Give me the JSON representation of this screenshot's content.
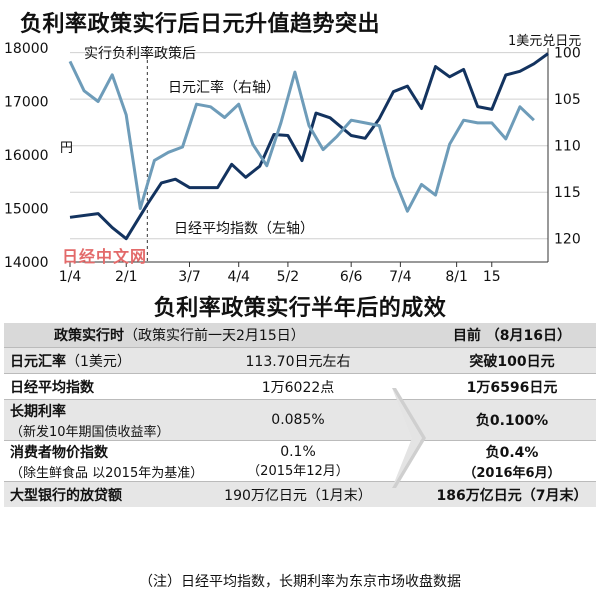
{
  "chart": {
    "title": "负利率政策实行后日元升值趋势突出",
    "right_unit": "1美元兑日元",
    "left_unit": "円",
    "annotation_policy": "实行负利率政策后",
    "label_yen": "日元汇率（右轴）",
    "label_nikkei": "日经平均指数（左轴）",
    "watermark": "日经中文网",
    "colors": {
      "yen": "#13335f",
      "nikkei": "#6e9cb9",
      "grid": "#d0d0d0"
    }
  },
  "chart_data": {
    "type": "line",
    "title": "负利率政策实行后日元升值趋势突出",
    "x_tick_labels": [
      "1/4",
      "2/1",
      "3/7",
      "4/4",
      "5/2",
      "6/6",
      "7/4",
      "8/1",
      "15"
    ],
    "x_tick_index": [
      0,
      8,
      17,
      24,
      31,
      40,
      47,
      55,
      60
    ],
    "policy_start_index": 11,
    "y_left": {
      "label": "",
      "range": [
        14000,
        18000
      ],
      "ticks": [
        14000,
        15000,
        16000,
        17000,
        18000
      ]
    },
    "y_right": {
      "label": "",
      "range": [
        122.5,
        99.5
      ],
      "ticks": [
        100,
        105,
        110,
        115,
        120
      ],
      "inverted": true
    },
    "series": [
      {
        "name": "日元汇率（右轴）",
        "axis": "right",
        "points": [
          [
            0,
            117.7
          ],
          [
            4,
            117.3
          ],
          [
            6,
            118.8
          ],
          [
            8,
            120.0
          ],
          [
            11,
            116.3
          ],
          [
            13,
            114.0
          ],
          [
            15,
            113.6
          ],
          [
            17,
            114.5
          ],
          [
            19,
            114.5
          ],
          [
            21,
            114.5
          ],
          [
            23,
            112.0
          ],
          [
            25,
            113.4
          ],
          [
            27,
            112.2
          ],
          [
            29,
            108.8
          ],
          [
            31,
            108.9
          ],
          [
            33,
            111.6
          ],
          [
            35,
            106.5
          ],
          [
            37,
            107.0
          ],
          [
            40,
            108.9
          ],
          [
            42,
            109.2
          ],
          [
            44,
            107.1
          ],
          [
            46,
            104.2
          ],
          [
            48,
            103.6
          ],
          [
            50,
            106.0
          ],
          [
            52,
            101.5
          ],
          [
            54,
            102.6
          ],
          [
            56,
            101.8
          ],
          [
            58,
            105.8
          ],
          [
            60,
            106.1
          ],
          [
            62,
            102.4
          ],
          [
            64,
            102.0
          ],
          [
            66,
            101.2
          ],
          [
            68,
            100.1
          ]
        ]
      },
      {
        "name": "日经平均指数（左轴）",
        "axis": "left",
        "points": [
          [
            0,
            17750
          ],
          [
            2,
            17200
          ],
          [
            4,
            17000
          ],
          [
            6,
            17500
          ],
          [
            8,
            16750
          ],
          [
            10,
            15000
          ],
          [
            12,
            15900
          ],
          [
            14,
            16050
          ],
          [
            16,
            16150
          ],
          [
            18,
            16950
          ],
          [
            20,
            16900
          ],
          [
            22,
            16700
          ],
          [
            24,
            16950
          ],
          [
            26,
            16200
          ],
          [
            28,
            15800
          ],
          [
            30,
            16600
          ],
          [
            32,
            17550
          ],
          [
            34,
            16550
          ],
          [
            36,
            16100
          ],
          [
            38,
            16350
          ],
          [
            40,
            16650
          ],
          [
            42,
            16600
          ],
          [
            44,
            16550
          ],
          [
            46,
            15600
          ],
          [
            48,
            14950
          ],
          [
            50,
            15450
          ],
          [
            52,
            15250
          ],
          [
            54,
            16200
          ],
          [
            56,
            16650
          ],
          [
            58,
            16600
          ],
          [
            60,
            16600
          ],
          [
            62,
            16300
          ],
          [
            64,
            16900
          ],
          [
            66,
            16650
          ]
        ]
      }
    ]
  },
  "table": {
    "title": "负利率政策实行半年后的成效",
    "header": {
      "col1": "政策实行时",
      "col1_note": "（政策实行前一天2月15日）",
      "col3": "目前 （8月16日）"
    },
    "rows": [
      {
        "label": "日元汇率",
        "label_note": "（1美元）",
        "before": "113.70日元左右",
        "now": "突破100日元"
      },
      {
        "label": "日经平均指数",
        "label_note": "",
        "before": "1万6022点",
        "now": "1万6596日元"
      },
      {
        "label": "长期利率",
        "label_note": "（新发10年期国债收益率）",
        "before": "0.085%",
        "now": "负0.100%"
      },
      {
        "label": "消费者物价指数",
        "label_note": "（除生鲜食品 以2015年为基准）",
        "before": "0.1%",
        "before_note": "（2015年12月）",
        "now": "负0.4%",
        "now_note": "（2016年6月）"
      },
      {
        "label": "大型银行的放贷额",
        "label_note": "",
        "before": "190万亿日元（1月末）",
        "now": "186万亿日元（7月末）"
      }
    ],
    "note": "（注）日经平均指数，长期利率为东京市场收盘数据"
  }
}
